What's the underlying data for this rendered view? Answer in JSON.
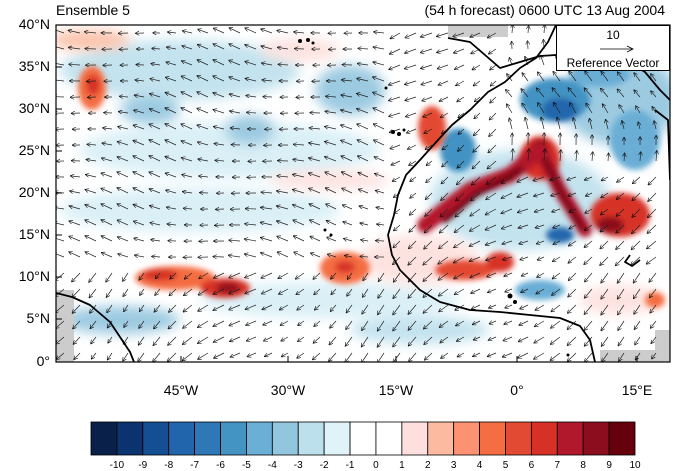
{
  "title_left": "Ensemble 5",
  "title_right": "(54 h forecast) 0600 UTC 13 Aug 2004",
  "y_ticks": [
    "40°N",
    "35°N",
    "30°N",
    "25°N",
    "20°N",
    "15°N",
    "10°N",
    "5°N",
    "0°"
  ],
  "x_ticks": [
    "45°W",
    "30°W",
    "15°W",
    "0°",
    "15°E"
  ],
  "reference_vector": {
    "value": "10",
    "label": "Reference Vector"
  },
  "colorbar": {
    "labels": [
      "-10",
      "-9",
      "-8",
      "-7",
      "-6",
      "-5",
      "-4",
      "-3",
      "-2",
      "-1",
      "0",
      "1",
      "2",
      "3",
      "4",
      "5",
      "6",
      "7",
      "8",
      "9",
      "10"
    ],
    "colors": [
      "#08204a",
      "#0a3370",
      "#154f93",
      "#2166ac",
      "#2f78b8",
      "#4393c3",
      "#6baed6",
      "#92c5de",
      "#bde0ed",
      "#e0f3f8",
      "#ffffff",
      "#ffffff",
      "#fde0dd",
      "#fcbba1",
      "#fc9272",
      "#f46d43",
      "#e34a33",
      "#d73027",
      "#b2182b",
      "#8b0d1e",
      "#67000d"
    ]
  },
  "map": {
    "lat_range": [
      0,
      40
    ],
    "lon_range": [
      -57,
      19
    ],
    "colors": {
      "land_outline": "#000000",
      "missing": "#cccccc"
    }
  }
}
